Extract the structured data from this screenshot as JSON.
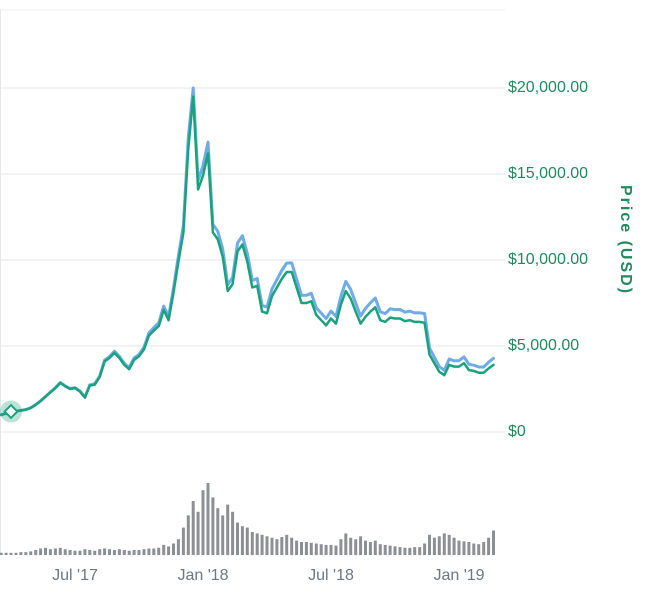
{
  "chart": {
    "y_axis": {
      "title": "Price (USD)",
      "tick_labels": [
        "$0",
        "$5,000.00",
        "$10,000.00",
        "$15,000.00",
        "$20,000.00"
      ]
    },
    "x_axis": {
      "tick_labels": [
        "Jul '17",
        "Jan '18",
        "Jul '18",
        "Jan '19"
      ]
    },
    "colors": {
      "label-green": "#1f8a5c",
      "x-label-gray": "#6d7884",
      "line-green": "#19a27d",
      "line-blue": "#6fabe6",
      "volume-gray": "#8d9093",
      "gridline": "#e6e6e6"
    }
  },
  "chart_data": {
    "type": "line",
    "title": "",
    "description": "Cryptocurrency price history (BTC-style): green price line with a blue companion line slightly above it, gray volume bars beneath, hover marker near the left edge.",
    "x_start": "2017-03-20",
    "x_step_days": 7,
    "x_tick_labels": [
      "Jul '17",
      "Jan '18",
      "Jul '18",
      "Jan '19"
    ],
    "x_tick_point_indices": [
      15,
      41,
      67,
      93
    ],
    "ylabel": "Price (USD)",
    "y_tick_values": [
      0,
      5000,
      10000,
      15000,
      20000
    ],
    "y_tick_labels": [
      "$0",
      "$5,000.00",
      "$10,000.00",
      "$15,000.00",
      "$20,000.00"
    ],
    "ylim": [
      0,
      24500
    ],
    "grid": "horizontal",
    "legend": "none",
    "series": [
      {
        "name": "Secondary line (unlabeled, blue)",
        "color": "#6fabe6",
        "values": [
          1000,
          1080,
          1190,
          1211,
          1253,
          1304,
          1406,
          1588,
          1811,
          2064,
          2318,
          2573,
          2879,
          2679,
          2530,
          2583,
          2383,
          2030,
          2743,
          2797,
          3258,
          4178,
          4386,
          4697,
          4395,
          3990,
          3738,
          4305,
          4514,
          4930,
          5757,
          6071,
          6335,
          7320,
          6708,
          8367,
          10237,
          12006,
          17094,
          20000,
          14636,
          15481,
          16848,
          12076,
          11670,
          10639,
          8561,
          8987,
          10983,
          11412,
          10375,
          8812,
          8925,
          7357,
          7259,
          8319,
          8854,
          9390,
          9821,
          9830,
          8887,
          7943,
          7950,
          8064,
          7222,
          6910,
          6597,
          7029,
          6716,
          7896,
          8758,
          8285,
          7490,
          6747,
          7182,
          7511,
          7787,
          6988,
          6886,
          7162,
          7115,
          7121,
          6966,
          7027,
          6925,
          6931,
          6883,
          4883,
          4344,
          3805,
          3590,
          4247,
          4142,
          4146,
          4368,
          3935,
          3884,
          3778,
          3781,
          4059,
          4282
        ]
      },
      {
        "name": "Price (USD)",
        "color": "#19a27d",
        "values": [
          1000,
          1080,
          1190,
          1210,
          1250,
          1300,
          1400,
          1580,
          1800,
          2050,
          2300,
          2550,
          2850,
          2650,
          2500,
          2550,
          2350,
          2000,
          2700,
          2750,
          3200,
          4100,
          4300,
          4600,
          4300,
          3900,
          3650,
          4200,
          4400,
          4800,
          5600,
          5900,
          6150,
          7100,
          6500,
          8100,
          9900,
          11600,
          16500,
          19500,
          14100,
          14900,
          16200,
          11600,
          11200,
          10200,
          8200,
          8600,
          10500,
          10900,
          9900,
          8400,
          8500,
          7000,
          6900,
          7900,
          8400,
          8900,
          9300,
          9300,
          8400,
          7500,
          7500,
          7600,
          6800,
          6500,
          6200,
          6600,
          6300,
          7400,
          8200,
          7750,
          7000,
          6300,
          6700,
          7000,
          7250,
          6500,
          6400,
          6650,
          6600,
          6600,
          6450,
          6500,
          6400,
          6400,
          6350,
          4500,
          4000,
          3500,
          3300,
          3900,
          3800,
          3800,
          4000,
          3600,
          3550,
          3450,
          3450,
          3700,
          3900
        ]
      }
    ],
    "volume": {
      "name": "Volume (relative units, no visible axis)",
      "color": "#8d9093",
      "max": 100,
      "values": [
        3,
        3,
        3,
        3,
        4,
        4,
        5,
        7,
        9,
        10,
        8,
        9,
        10,
        8,
        7,
        6,
        6,
        8,
        7,
        6,
        8,
        9,
        8,
        7,
        8,
        7,
        6,
        7,
        7,
        8,
        9,
        9,
        10,
        14,
        12,
        16,
        22,
        38,
        55,
        75,
        60,
        90,
        100,
        80,
        65,
        55,
        70,
        60,
        45,
        40,
        38,
        32,
        30,
        28,
        26,
        24,
        22,
        25,
        28,
        24,
        20,
        18,
        18,
        17,
        16,
        15,
        14,
        14,
        13,
        22,
        30,
        24,
        22,
        26,
        20,
        18,
        20,
        15,
        14,
        13,
        12,
        11,
        10,
        10,
        11,
        11,
        16,
        28,
        24,
        26,
        30,
        28,
        24,
        20,
        19,
        18,
        16,
        15,
        18,
        24,
        34
      ]
    },
    "marker": {
      "series": "Price (USD)",
      "point_index": 2,
      "shape": "diamond-with-halo"
    }
  }
}
